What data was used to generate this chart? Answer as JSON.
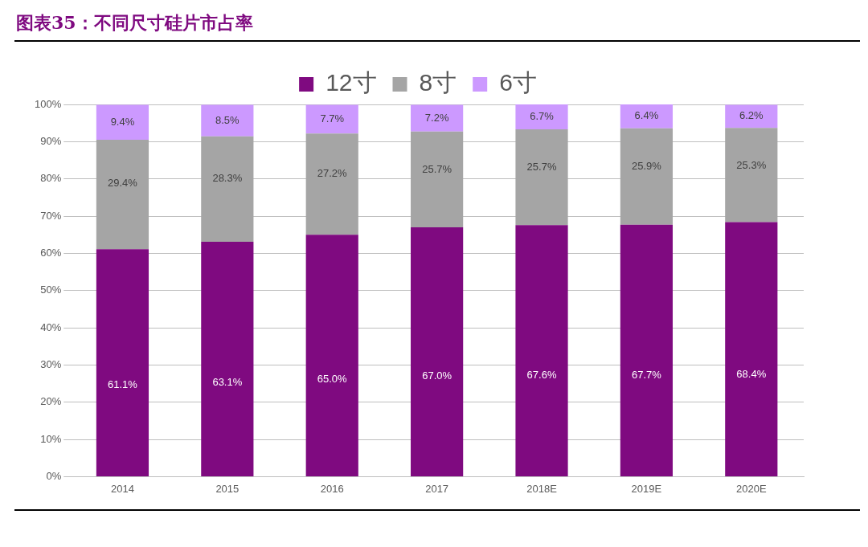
{
  "chart_data": {
    "type": "bar",
    "title": "图表35：不同尺寸硅片市占率",
    "stacked": true,
    "legend": "top",
    "grid": "y",
    "categories": [
      "2014",
      "2015",
      "2016",
      "2017",
      "2018E",
      "2019E",
      "2020E"
    ],
    "series": [
      {
        "name": "12寸",
        "color": "#7f0a80",
        "values": [
          61.1,
          63.1,
          65.0,
          67.0,
          67.6,
          67.7,
          68.4
        ],
        "value_labels": [
          "61.1%",
          "63.1%",
          "65.0%",
          "67.0%",
          "67.6%",
          "67.7%",
          "68.4%"
        ]
      },
      {
        "name": "8寸",
        "color": "#a5a5a5",
        "values": [
          29.4,
          28.3,
          27.2,
          25.7,
          25.7,
          25.9,
          25.3
        ],
        "value_labels": [
          "29.4%",
          "28.3%",
          "27.2%",
          "25.7%",
          "25.7%",
          "25.9%",
          "25.3%"
        ]
      },
      {
        "name": "6寸",
        "color": "#cc99ff",
        "values": [
          9.4,
          8.5,
          7.7,
          7.2,
          6.7,
          6.4,
          6.2
        ],
        "value_labels": [
          "9.4%",
          "8.5%",
          "7.7%",
          "7.2%",
          "6.7%",
          "6.4%",
          "6.2%"
        ]
      }
    ],
    "ylim": [
      0,
      100
    ],
    "yticks": [
      {
        "value": 0,
        "label": "0%"
      },
      {
        "value": 10,
        "label": "10%"
      },
      {
        "value": 20,
        "label": "20%"
      },
      {
        "value": 30,
        "label": "30%"
      },
      {
        "value": 40,
        "label": "40%"
      },
      {
        "value": 50,
        "label": "50%"
      },
      {
        "value": 60,
        "label": "60%"
      },
      {
        "value": 70,
        "label": "70%"
      },
      {
        "value": 80,
        "label": "80%"
      },
      {
        "value": 90,
        "label": "90%"
      },
      {
        "value": 100,
        "label": "100%"
      }
    ]
  }
}
